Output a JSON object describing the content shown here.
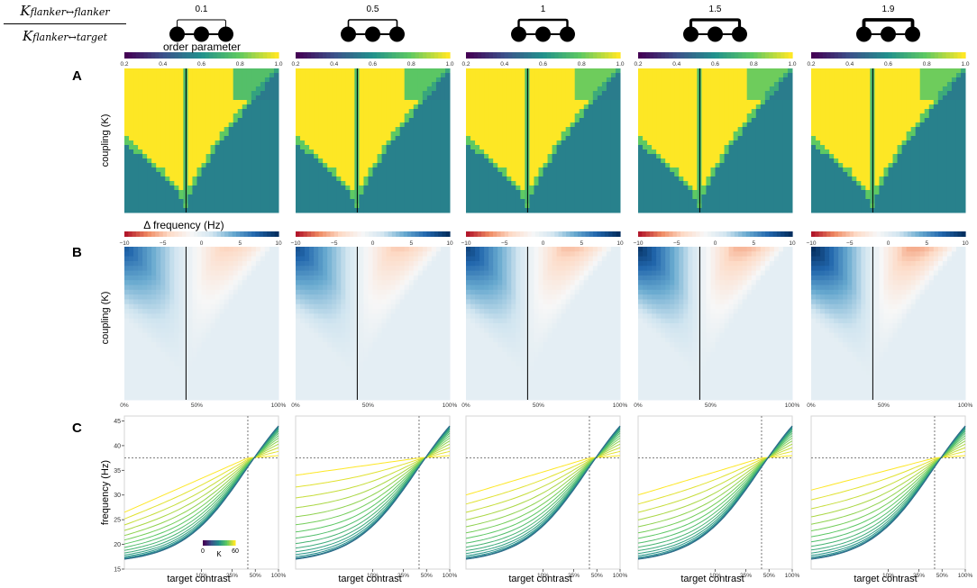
{
  "ratio": {
    "numerator_base": "K",
    "numerator_sub": "flanker↔flanker",
    "denominator_base": "K",
    "denominator_sub": "flanker↔target"
  },
  "panel_letters": [
    "A",
    "B",
    "C"
  ],
  "icons": {
    "labels": [
      "0.1",
      "0.5",
      "1",
      "1.5",
      "1.9"
    ],
    "arc_strength": [
      0.1,
      0.5,
      1.0,
      1.5,
      1.9
    ]
  },
  "colors": {
    "viridis": [
      "#440154",
      "#3b528b",
      "#21918c",
      "#5ec962",
      "#fde725"
    ],
    "rdbu": [
      "#b2182b",
      "#ef8a62",
      "#fddbc7",
      "#f7f7f7",
      "#d1e5f0",
      "#67a9cf",
      "#2166ac",
      "#053061"
    ]
  },
  "chart_data": [
    {
      "type": "heatmap",
      "panel": "A",
      "colorbar_title": "order parameter",
      "colorbar_ticks": [
        "0.2",
        "0.4",
        "0.6",
        "0.8",
        "1.0"
      ],
      "colorbar_range": [
        0.2,
        1.0
      ],
      "colormap": "viridis",
      "ylabel": "coupling (K)",
      "xlabel": "",
      "background_value": 0.55,
      "synchronized_value": 1.0,
      "target_contrast_marker": 0.4,
      "ratios": [
        0.1,
        0.5,
        1,
        1.5,
        1.9
      ]
    },
    {
      "type": "heatmap",
      "panel": "B",
      "colorbar_title": "Δ frequency (Hz)",
      "colorbar_ticks": [
        "−10",
        "−5",
        "0",
        "5",
        "10"
      ],
      "colorbar_range": [
        -10,
        10
      ],
      "colormap": "RdBu",
      "ylabel": "coupling (K)",
      "x_ticks": [
        "0%",
        "50%",
        "100%"
      ],
      "target_contrast_marker": 0.4,
      "ratios": [
        0.1,
        0.5,
        1,
        1.5,
        1.9
      ]
    },
    {
      "type": "line",
      "panel": "C",
      "xlabel": "target contrast",
      "ylabel": "frequency (Hz)",
      "y_ticks": [
        15,
        20,
        25,
        30,
        35,
        40,
        45
      ],
      "ylim": [
        15,
        46
      ],
      "x_ticks": [
        "10%",
        "25%",
        "50%",
        "100%"
      ],
      "x_tick_values": [
        0.1,
        0.25,
        0.5,
        1.0
      ],
      "xlim": [
        0.01,
        1.0
      ],
      "x_scale": "log",
      "crossing_point": {
        "x": 0.4,
        "y": 37.5
      },
      "frequency_range": [
        17,
        44
      ],
      "colorbar_title": "K",
      "colorbar_ticks": [
        "0",
        "60"
      ],
      "colorbar_range": [
        0,
        60
      ],
      "low_contrast_start": [
        26.5,
        34,
        30,
        30,
        31
      ],
      "ratios": [
        0.1,
        0.5,
        1,
        1.5,
        1.9
      ]
    }
  ]
}
